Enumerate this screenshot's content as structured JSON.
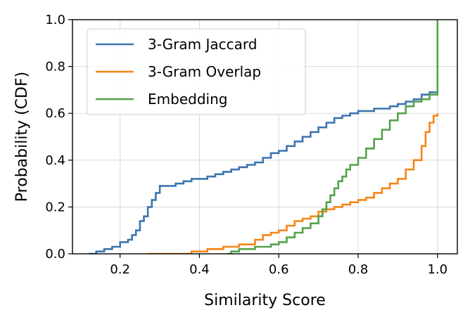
{
  "chart_data": {
    "type": "line",
    "xlabel": "Similarity Score",
    "ylabel": "Probability (CDF)",
    "xlim": [
      0.08,
      1.05
    ],
    "ylim": [
      0.0,
      1.0
    ],
    "xticks": [
      0.2,
      0.4,
      0.6,
      0.8,
      1.0
    ],
    "xtick_labels": [
      "0.2",
      "0.4",
      "0.6",
      "0.8",
      "1.0"
    ],
    "yticks": [
      0.0,
      0.2,
      0.4,
      0.6,
      0.8,
      1.0
    ],
    "ytick_labels": [
      "0.0",
      "0.2",
      "0.4",
      "0.6",
      "0.8",
      "1.0"
    ],
    "grid": true,
    "legend_position": "upper-left",
    "series": [
      {
        "name": "3-Gram Jaccard",
        "color": "#3b75af",
        "x": [
          0.12,
          0.14,
          0.16,
          0.18,
          0.2,
          0.22,
          0.23,
          0.24,
          0.25,
          0.26,
          0.27,
          0.28,
          0.29,
          0.3,
          0.32,
          0.34,
          0.36,
          0.38,
          0.4,
          0.42,
          0.44,
          0.46,
          0.48,
          0.5,
          0.52,
          0.54,
          0.56,
          0.58,
          0.6,
          0.62,
          0.64,
          0.66,
          0.68,
          0.7,
          0.72,
          0.74,
          0.76,
          0.78,
          0.8,
          0.82,
          0.84,
          0.86,
          0.88,
          0.9,
          0.92,
          0.94,
          0.96,
          0.98,
          1.0
        ],
        "y": [
          0.0,
          0.01,
          0.02,
          0.03,
          0.05,
          0.06,
          0.08,
          0.1,
          0.14,
          0.16,
          0.2,
          0.23,
          0.26,
          0.29,
          0.29,
          0.3,
          0.31,
          0.32,
          0.32,
          0.33,
          0.34,
          0.35,
          0.36,
          0.37,
          0.38,
          0.39,
          0.41,
          0.43,
          0.44,
          0.46,
          0.48,
          0.5,
          0.52,
          0.54,
          0.56,
          0.58,
          0.59,
          0.6,
          0.61,
          0.61,
          0.62,
          0.62,
          0.63,
          0.64,
          0.65,
          0.66,
          0.68,
          0.69,
          0.69
        ]
      },
      {
        "name": "3-Gram Overlap",
        "color": "#f58518",
        "x": [
          0.27,
          0.3,
          0.34,
          0.38,
          0.42,
          0.46,
          0.5,
          0.54,
          0.56,
          0.58,
          0.6,
          0.62,
          0.64,
          0.66,
          0.68,
          0.7,
          0.72,
          0.74,
          0.76,
          0.78,
          0.8,
          0.82,
          0.84,
          0.86,
          0.88,
          0.9,
          0.92,
          0.94,
          0.96,
          0.97,
          0.98,
          0.99,
          1.0
        ],
        "y": [
          0.0,
          0.0,
          0.0,
          0.01,
          0.02,
          0.03,
          0.04,
          0.06,
          0.08,
          0.09,
          0.1,
          0.12,
          0.14,
          0.15,
          0.16,
          0.18,
          0.19,
          0.2,
          0.21,
          0.22,
          0.23,
          0.24,
          0.26,
          0.28,
          0.3,
          0.32,
          0.36,
          0.4,
          0.46,
          0.52,
          0.56,
          0.59,
          0.6
        ]
      },
      {
        "name": "Embedding",
        "color": "#54a24b",
        "x": [
          0.47,
          0.48,
          0.5,
          0.54,
          0.58,
          0.6,
          0.62,
          0.64,
          0.66,
          0.68,
          0.7,
          0.71,
          0.72,
          0.73,
          0.74,
          0.75,
          0.76,
          0.77,
          0.78,
          0.8,
          0.82,
          0.84,
          0.86,
          0.88,
          0.9,
          0.92,
          0.94,
          0.96,
          0.98,
          1.0
        ],
        "y": [
          0.0,
          0.01,
          0.02,
          0.03,
          0.04,
          0.05,
          0.07,
          0.09,
          0.11,
          0.13,
          0.16,
          0.19,
          0.22,
          0.25,
          0.28,
          0.31,
          0.33,
          0.36,
          0.38,
          0.41,
          0.45,
          0.49,
          0.53,
          0.57,
          0.6,
          0.63,
          0.65,
          0.66,
          0.68,
          0.69
        ]
      }
    ],
    "embedding_final_jump": [
      0.69,
      1.0
    ]
  }
}
